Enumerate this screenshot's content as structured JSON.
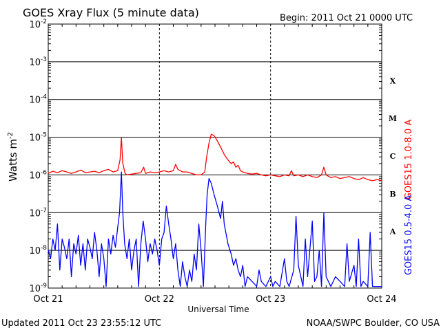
{
  "header": {
    "title": "GOES Xray Flux (5 minute data)",
    "begin": "Begin:  2011 Oct 21 0000 UTC"
  },
  "footer": {
    "updated": "Updated 2011 Oct 23 23:55:12 UTC",
    "credit": "NOAA/SWPC Boulder, CO USA"
  },
  "chart_data": {
    "type": "line",
    "title": "GOES Xray Flux (5 minute data)",
    "xlabel": "Universal Time",
    "ylabel_main": "Watts m",
    "ylabel_sup": "-2",
    "y_scale": "log",
    "ylim": [
      1e-09,
      0.01
    ],
    "y_ticks": [
      {
        "base": "10",
        "exp": "-9",
        "value": 1e-09
      },
      {
        "base": "10",
        "exp": "-8",
        "value": 1e-08
      },
      {
        "base": "10",
        "exp": "-7",
        "value": 1e-07
      },
      {
        "base": "10",
        "exp": "-6",
        "value": 1e-06
      },
      {
        "base": "10",
        "exp": "-5",
        "value": 1e-05
      },
      {
        "base": "10",
        "exp": "-4",
        "value": 0.0001
      },
      {
        "base": "10",
        "exp": "-3",
        "value": 0.001
      },
      {
        "base": "10",
        "exp": "-2",
        "value": 0.01
      }
    ],
    "xlim": [
      0,
      72
    ],
    "x_unit": "hours since 2011 Oct 21 0000 UTC",
    "x_ticks": [
      {
        "label": "Oct 21",
        "value": 0
      },
      {
        "label": "Oct 22",
        "value": 24
      },
      {
        "label": "Oct 23",
        "value": 48
      },
      {
        "label": "Oct 24",
        "value": 72
      }
    ],
    "flare_classes": [
      {
        "label": "A",
        "value": 3.16e-08
      },
      {
        "label": "B",
        "value": 3.16e-07
      },
      {
        "label": "C",
        "value": 3.16e-06
      },
      {
        "label": "M",
        "value": 3.16e-05
      },
      {
        "label": "X",
        "value": 0.000316
      }
    ],
    "grid": "horizontal decades, dashed vertical at day boundaries",
    "series": [
      {
        "name": "GOES15 1.0-8.0 A",
        "color": "#ff0000",
        "points": [
          [
            0,
            1.1e-06
          ],
          [
            1,
            1.25e-06
          ],
          [
            2,
            1.15e-06
          ],
          [
            3,
            1.3e-06
          ],
          [
            4,
            1.2e-06
          ],
          [
            5,
            1.1e-06
          ],
          [
            6,
            1.2e-06
          ],
          [
            7,
            1.35e-06
          ],
          [
            8,
            1.15e-06
          ],
          [
            9,
            1.2e-06
          ],
          [
            10,
            1.25e-06
          ],
          [
            11,
            1.15e-06
          ],
          [
            12,
            1.3e-06
          ],
          [
            13,
            1.4e-06
          ],
          [
            14,
            1.2e-06
          ],
          [
            15,
            1.3e-06
          ],
          [
            15.5,
            2.5e-06
          ],
          [
            15.8,
            1e-05
          ],
          [
            16.1,
            2e-06
          ],
          [
            16.6,
            1.1e-06
          ],
          [
            17,
            1e-06
          ],
          [
            18,
            1.05e-06
          ],
          [
            19,
            1.1e-06
          ],
          [
            20,
            1.15e-06
          ],
          [
            20.6,
            1.6e-06
          ],
          [
            21,
            1.1e-06
          ],
          [
            22,
            1.2e-06
          ],
          [
            23,
            1.15e-06
          ],
          [
            24,
            1.2e-06
          ],
          [
            25,
            1.3e-06
          ],
          [
            26,
            1.2e-06
          ],
          [
            27,
            1.3e-06
          ],
          [
            27.5,
            1.9e-06
          ],
          [
            28,
            1.4e-06
          ],
          [
            29,
            1.2e-06
          ],
          [
            30,
            1.2e-06
          ],
          [
            31,
            1.1e-06
          ],
          [
            32,
            1e-06
          ],
          [
            33,
            1e-06
          ],
          [
            33.8,
            1.2e-06
          ],
          [
            34.2,
            3e-06
          ],
          [
            34.7,
            7e-06
          ],
          [
            35.2,
            1.2e-05
          ],
          [
            35.8,
            1.1e-05
          ],
          [
            36.5,
            8e-06
          ],
          [
            37.2,
            5.5e-06
          ],
          [
            38,
            3.5e-06
          ],
          [
            38.8,
            2.5e-06
          ],
          [
            39.5,
            2e-06
          ],
          [
            40,
            2.2e-06
          ],
          [
            40.5,
            1.6e-06
          ],
          [
            41,
            1.8e-06
          ],
          [
            41.5,
            1.3e-06
          ],
          [
            42,
            1.2e-06
          ],
          [
            43,
            1.1e-06
          ],
          [
            44,
            1.05e-06
          ],
          [
            45,
            1.1e-06
          ],
          [
            46,
            1e-06
          ],
          [
            47,
            9.5e-07
          ],
          [
            48,
            1e-06
          ],
          [
            49,
            9.5e-07
          ],
          [
            50,
            9e-07
          ],
          [
            51,
            1e-06
          ],
          [
            52,
            9.5e-07
          ],
          [
            52.5,
            1.3e-06
          ],
          [
            53,
            9.5e-07
          ],
          [
            54,
            1e-06
          ],
          [
            55,
            9e-07
          ],
          [
            56,
            1e-06
          ],
          [
            57,
            9e-07
          ],
          [
            58,
            8.5e-07
          ],
          [
            59,
            1e-06
          ],
          [
            59.5,
            1.6e-06
          ],
          [
            60,
            1e-06
          ],
          [
            61,
            8.5e-07
          ],
          [
            62,
            9e-07
          ],
          [
            63,
            8e-07
          ],
          [
            64,
            8.5e-07
          ],
          [
            65,
            9e-07
          ],
          [
            66,
            8e-07
          ],
          [
            67,
            7.5e-07
          ],
          [
            68,
            8.5e-07
          ],
          [
            69,
            7.5e-07
          ],
          [
            70,
            7e-07
          ],
          [
            71,
            7.5e-07
          ],
          [
            72,
            7e-07
          ]
        ]
      },
      {
        "name": "GOES15 0.5-4.0 A",
        "color": "#0000ff",
        "points": [
          [
            0,
            1e-08
          ],
          [
            0.5,
            6e-09
          ],
          [
            1,
            2e-08
          ],
          [
            1.5,
            1e-08
          ],
          [
            2,
            5e-08
          ],
          [
            2.5,
            3e-09
          ],
          [
            3,
            2e-08
          ],
          [
            3.5,
            1.2e-08
          ],
          [
            4,
            6e-09
          ],
          [
            4.5,
            2e-08
          ],
          [
            5,
            2e-09
          ],
          [
            5.5,
            1.5e-08
          ],
          [
            6,
            8e-09
          ],
          [
            6.5,
            2.5e-08
          ],
          [
            7,
            4e-09
          ],
          [
            7.5,
            1.5e-08
          ],
          [
            8,
            3e-09
          ],
          [
            8.5,
            2e-08
          ],
          [
            9,
            1.2e-08
          ],
          [
            9.5,
            6e-09
          ],
          [
            10,
            3e-08
          ],
          [
            10.5,
            1e-08
          ],
          [
            11,
            2e-09
          ],
          [
            11.5,
            1.5e-08
          ],
          [
            12,
            6e-09
          ],
          [
            12.5,
            1.1e-09
          ],
          [
            13,
            2e-08
          ],
          [
            13.5,
            8e-09
          ],
          [
            14,
            2.5e-08
          ],
          [
            14.5,
            1.2e-08
          ],
          [
            15,
            4e-08
          ],
          [
            15.4,
            1e-07
          ],
          [
            15.8,
            1.2e-06
          ],
          [
            16.1,
            1e-07
          ],
          [
            16.5,
            1.5e-08
          ],
          [
            17,
            6e-09
          ],
          [
            17.5,
            2e-08
          ],
          [
            18,
            3e-09
          ],
          [
            18.5,
            1e-08
          ],
          [
            19,
            2e-08
          ],
          [
            19.5,
            1.1e-09
          ],
          [
            20,
            1.5e-08
          ],
          [
            20.5,
            6e-08
          ],
          [
            21,
            2e-08
          ],
          [
            21.5,
            5e-09
          ],
          [
            22,
            1.5e-08
          ],
          [
            22.5,
            8e-09
          ],
          [
            23,
            2e-08
          ],
          [
            23.5,
            1e-08
          ],
          [
            24,
            4e-09
          ],
          [
            24.5,
            2e-08
          ],
          [
            25,
            3e-08
          ],
          [
            25.5,
            1.5e-07
          ],
          [
            26,
            5e-08
          ],
          [
            26.5,
            2e-08
          ],
          [
            27,
            6e-09
          ],
          [
            27.5,
            1.5e-08
          ],
          [
            28,
            3e-09
          ],
          [
            28.5,
            1.1e-09
          ],
          [
            29,
            5e-09
          ],
          [
            29.5,
            2e-09
          ],
          [
            30,
            1.1e-09
          ],
          [
            30.5,
            3e-09
          ],
          [
            31,
            1.5e-09
          ],
          [
            31.5,
            8e-09
          ],
          [
            32,
            3e-09
          ],
          [
            32.5,
            5e-08
          ],
          [
            33,
            1e-08
          ],
          [
            33.5,
            1.1e-09
          ],
          [
            34,
            5e-08
          ],
          [
            34.3,
            3e-07
          ],
          [
            34.7,
            8e-07
          ],
          [
            35.2,
            6e-07
          ],
          [
            35.8,
            3e-07
          ],
          [
            36.5,
            1.5e-07
          ],
          [
            37.2,
            7e-08
          ],
          [
            37.6,
            2e-07
          ],
          [
            38,
            5e-08
          ],
          [
            38.8,
            1.5e-08
          ],
          [
            39.5,
            8e-09
          ],
          [
            40,
            4e-09
          ],
          [
            40.5,
            6e-09
          ],
          [
            41,
            3e-09
          ],
          [
            41.5,
            2e-09
          ],
          [
            42,
            4e-09
          ],
          [
            42.5,
            1.1e-09
          ],
          [
            43,
            2e-09
          ],
          [
            44,
            1.5e-09
          ],
          [
            45,
            1.1e-09
          ],
          [
            45.5,
            3e-09
          ],
          [
            46,
            1.5e-09
          ],
          [
            47,
            1.1e-09
          ],
          [
            48,
            2e-09
          ],
          [
            48.5,
            1.1e-09
          ],
          [
            49,
            1.5e-09
          ],
          [
            50,
            1.1e-09
          ],
          [
            51,
            6e-09
          ],
          [
            51.5,
            1.5e-09
          ],
          [
            52,
            1.1e-09
          ],
          [
            53,
            3e-09
          ],
          [
            53.5,
            8e-08
          ],
          [
            54,
            4e-09
          ],
          [
            55,
            1.1e-09
          ],
          [
            55.5,
            2e-08
          ],
          [
            56,
            2e-09
          ],
          [
            57,
            6e-08
          ],
          [
            57.5,
            1.5e-09
          ],
          [
            58,
            2e-09
          ],
          [
            58.5,
            1e-08
          ],
          [
            59,
            1.1e-09
          ],
          [
            59.5,
            1e-07
          ],
          [
            60,
            2e-09
          ],
          [
            61,
            1.1e-09
          ],
          [
            62,
            2e-09
          ],
          [
            63,
            1.5e-09
          ],
          [
            64,
            1.1e-09
          ],
          [
            64.5,
            1.5e-08
          ],
          [
            65,
            1.5e-09
          ],
          [
            66,
            4e-09
          ],
          [
            66.5,
            1.1e-09
          ],
          [
            67,
            2e-08
          ],
          [
            67.5,
            1.1e-09
          ],
          [
            68,
            1.5e-09
          ],
          [
            69,
            1.1e-09
          ],
          [
            69.5,
            3e-08
          ],
          [
            70,
            1.1e-09
          ],
          [
            71,
            1.1e-09
          ],
          [
            72,
            1.1e-09
          ]
        ]
      }
    ]
  }
}
